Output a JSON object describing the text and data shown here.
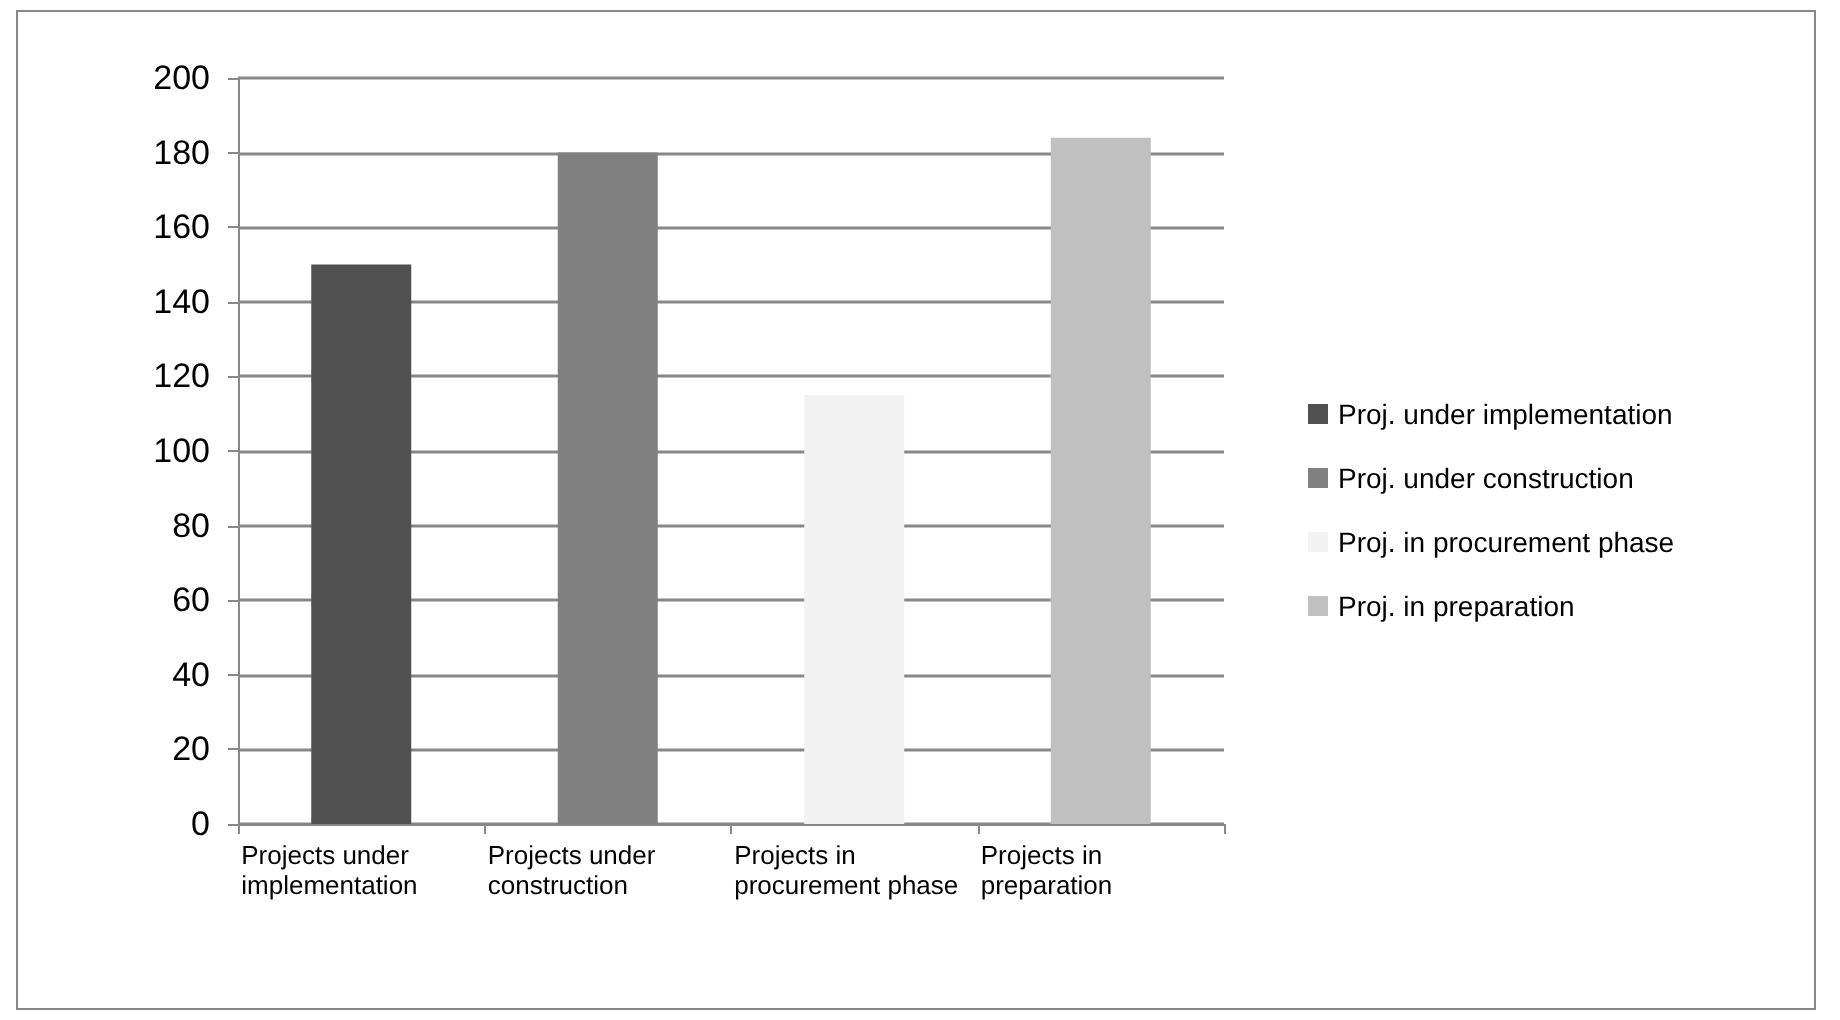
{
  "chart_data": {
    "type": "bar",
    "categories": [
      "Projects under implementation",
      "Projects under construction",
      "Projects in procurement phase",
      "Projects in preparation"
    ],
    "series": [
      {
        "name": "Proj. under implementation",
        "color": "#505050",
        "values": [
          150,
          null,
          null,
          null
        ]
      },
      {
        "name": "Proj. under construction",
        "color": "#808080",
        "values": [
          null,
          180,
          null,
          null
        ]
      },
      {
        "name": "Proj. in procurement phase",
        "color": "#f2f2f2",
        "values": [
          null,
          null,
          115,
          null
        ]
      },
      {
        "name": "Proj. in preparation",
        "color": "#c0c0c0",
        "values": [
          null,
          null,
          null,
          184
        ]
      }
    ],
    "ylim": [
      0,
      200
    ],
    "yticks": [
      0,
      20,
      40,
      60,
      80,
      100,
      120,
      140,
      160,
      180,
      200
    ],
    "grid": "y",
    "legend": "right"
  }
}
